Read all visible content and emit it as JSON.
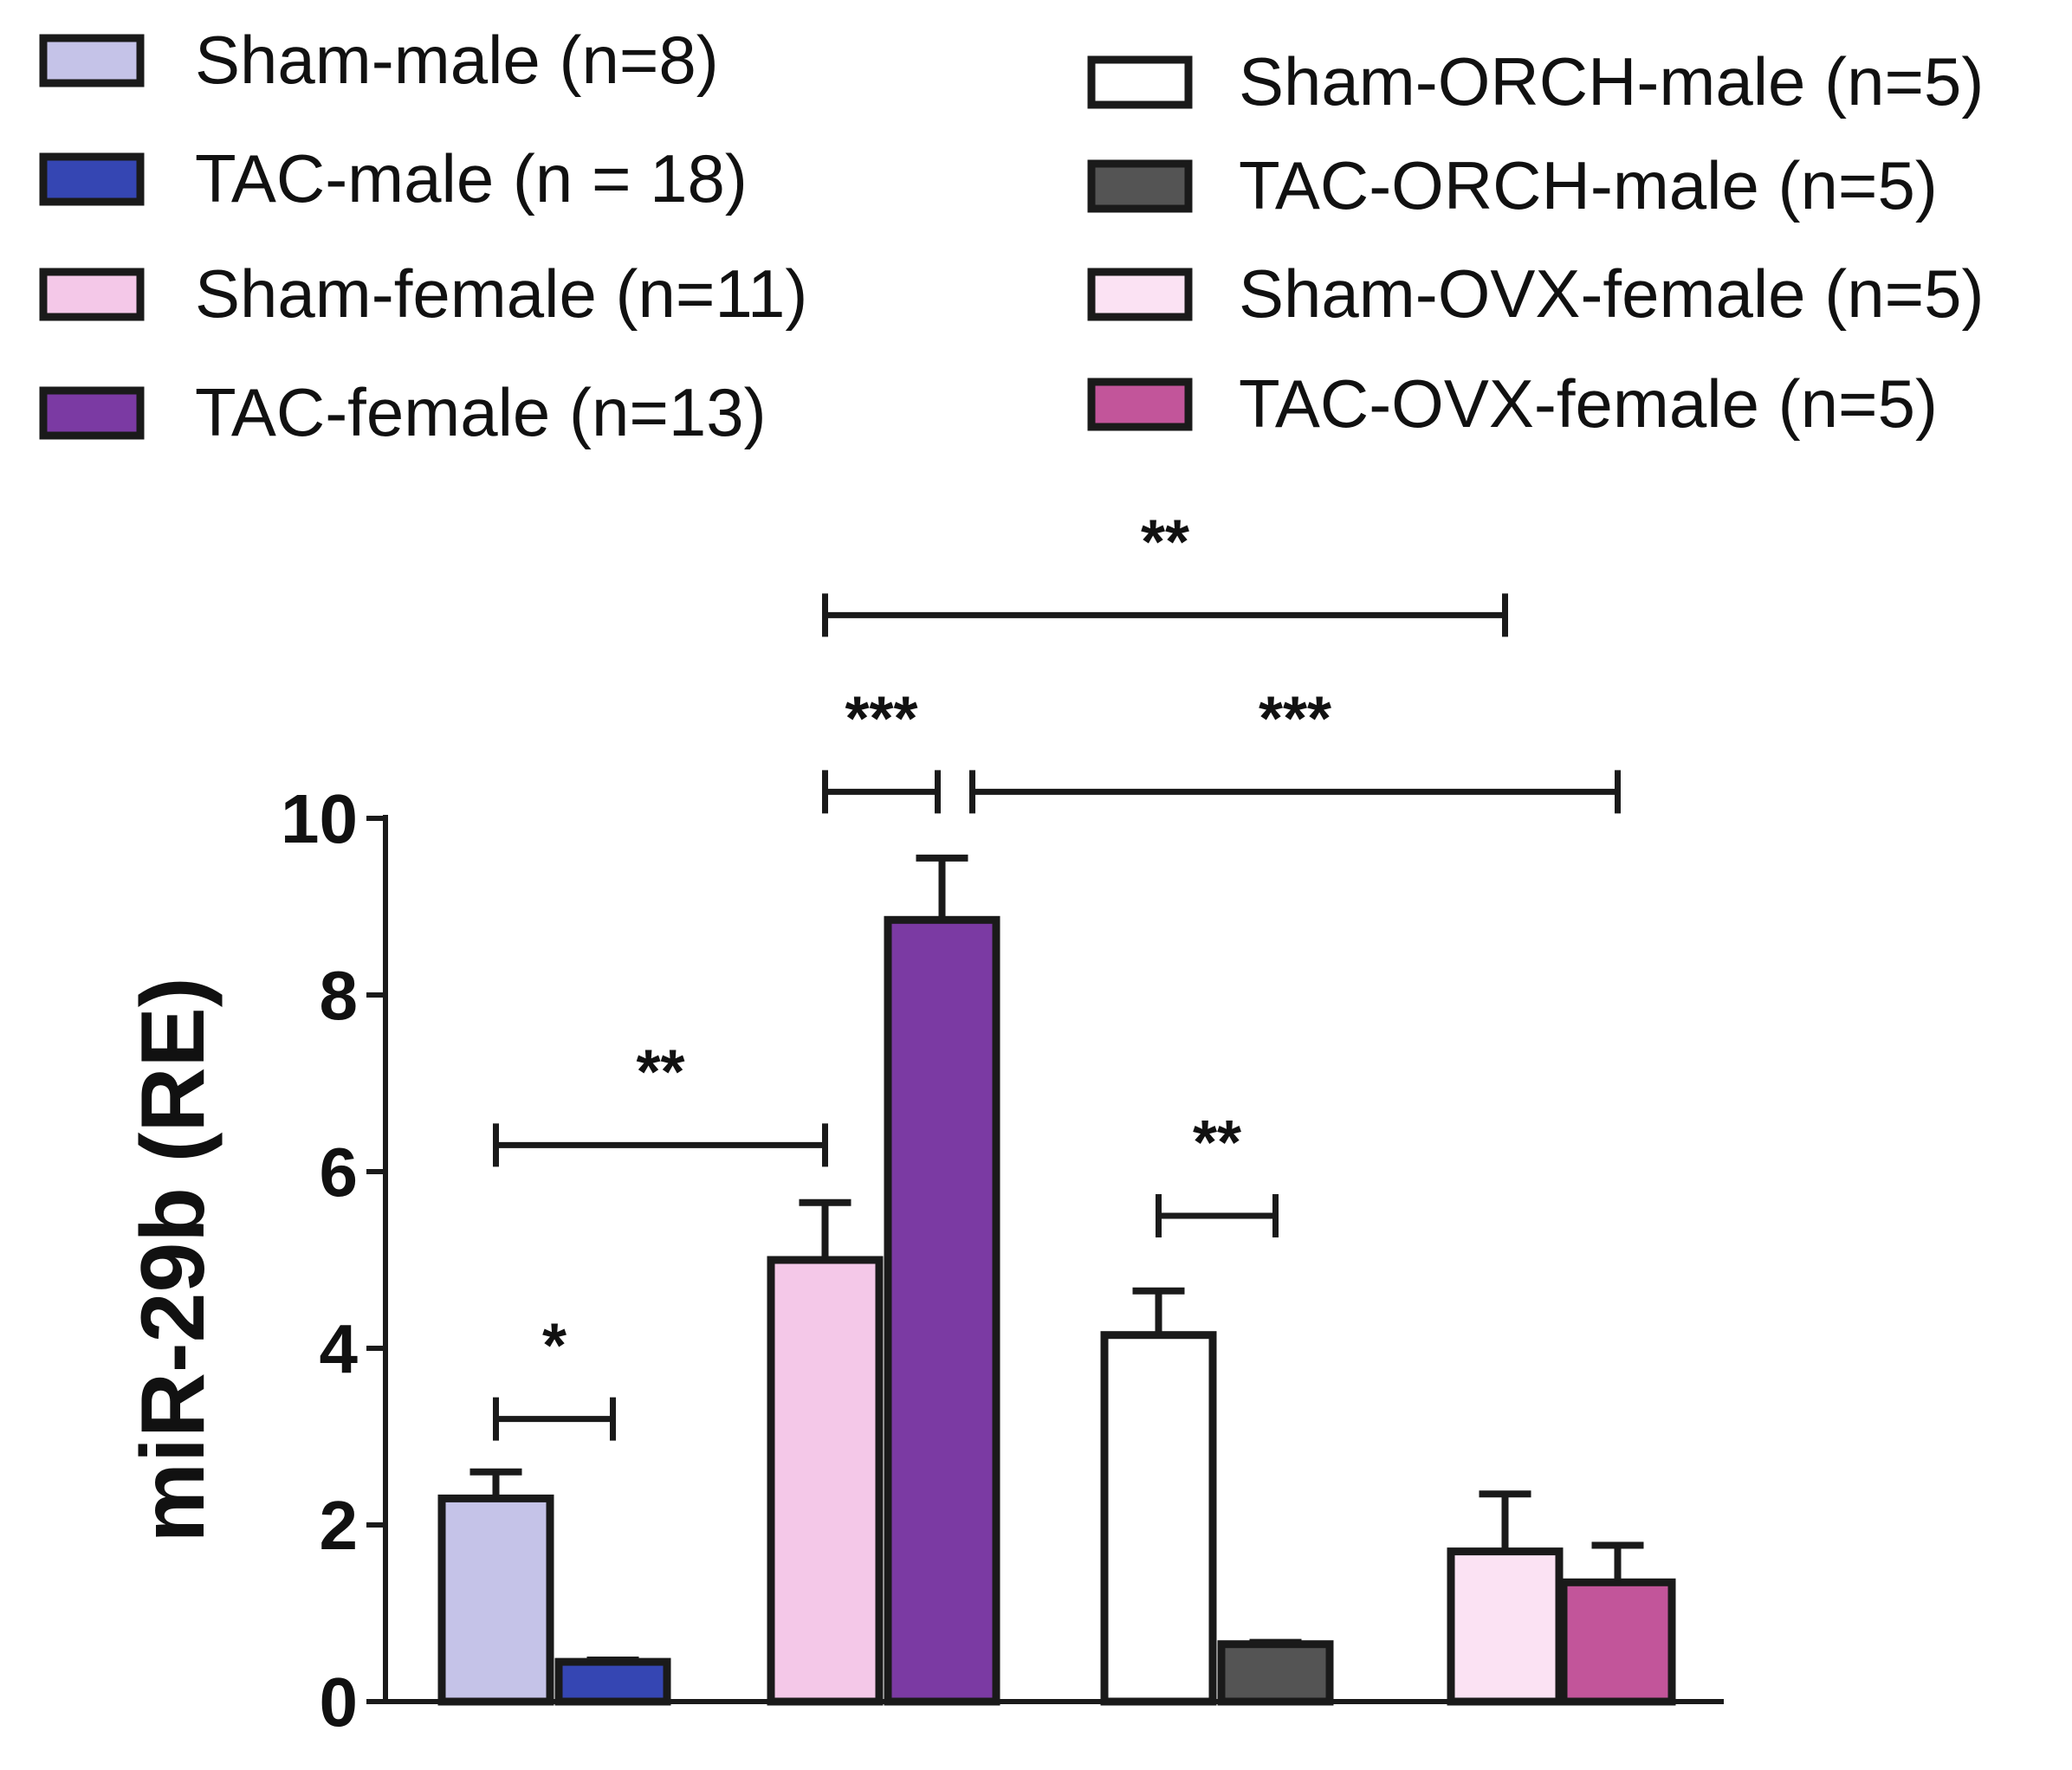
{
  "chart_data": {
    "type": "bar",
    "ylabel": "miR-29b (RE)",
    "ylim": [
      0,
      10
    ],
    "yticks": [
      0,
      2,
      4,
      6,
      8,
      10
    ],
    "series": [
      {
        "name": "Sham-male (n=8)",
        "value": 2.3,
        "error": 0.3,
        "color": "#c5c3e8"
      },
      {
        "name": "TAC-male (n = 18)",
        "value": 0.45,
        "error": 0.02,
        "color": "#3546b3"
      },
      {
        "name": "Sham-female (n=11)",
        "value": 5.0,
        "error": 0.65,
        "color": "#f4c8e8"
      },
      {
        "name": "TAC-female (n=13)",
        "value": 8.85,
        "error": 0.7,
        "color": "#7b3aa3"
      },
      {
        "name": "Sham-ORCH-male (n=5)",
        "value": 4.15,
        "error": 0.5,
        "color": "#ffffff"
      },
      {
        "name": "TAC-ORCH-male (n=5)",
        "value": 0.65,
        "error": 0.02,
        "color": "#545454"
      },
      {
        "name": "Sham-OVX-female (n=5)",
        "value": 1.7,
        "error": 0.65,
        "color": "#fbe2f3"
      },
      {
        "name": "TAC-OVX-female (n=5)",
        "value": 1.35,
        "error": 0.42,
        "color": "#c2559a"
      }
    ],
    "significance": [
      {
        "label": "*",
        "from": 0,
        "to": 1,
        "y": 3.2
      },
      {
        "label": "**",
        "from": 0,
        "to": 2,
        "y": 6.3
      },
      {
        "label": "***",
        "from": 2,
        "to": 3,
        "y": 10.3
      },
      {
        "label": "***",
        "from": 3,
        "to": 7,
        "y": 10.3
      },
      {
        "label": "**",
        "from": 2,
        "to": 6,
        "y": 12.3
      },
      {
        "label": "**",
        "from": 4,
        "to": 5,
        "y": 5.5
      }
    ]
  }
}
